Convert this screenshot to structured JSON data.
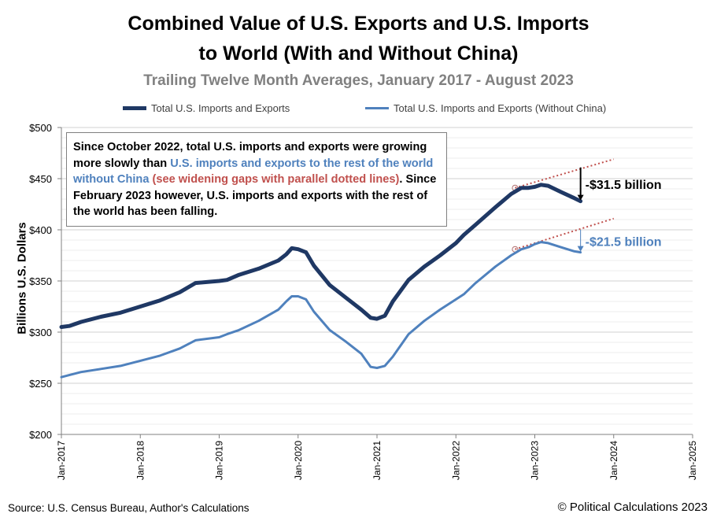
{
  "chart_data": {
    "type": "line",
    "title_lines": [
      "Combined Value of U.S. Exports and U.S. Imports",
      "to World (With and Without China)"
    ],
    "subtitle": "Trailing Twelve Month Averages, January 2017 - August 2023",
    "ylabel": "Billions U.S. Dollars",
    "ylim": [
      200,
      500
    ],
    "yticks": [
      "$200",
      "$250",
      "$300",
      "$350",
      "$400",
      "$450",
      "$500"
    ],
    "ytick_values": [
      200,
      250,
      300,
      350,
      400,
      450,
      500
    ],
    "xticks": [
      "Jan-2017",
      "Jan-2018",
      "Jan-2019",
      "Jan-2020",
      "Jan-2021",
      "Jan-2022",
      "Jan-2023",
      "Jan-2024",
      "Jan-2025"
    ],
    "xlim_year": [
      2017,
      2025
    ],
    "grid": true,
    "legend_position": "top",
    "series": [
      {
        "name": "Total U.S. Imports and Exports",
        "color": "#1f3864",
        "x": [
          2017.0,
          2017.1,
          2017.25,
          2017.5,
          2017.75,
          2018.0,
          2018.25,
          2018.5,
          2018.7,
          2019.0,
          2019.1,
          2019.25,
          2019.5,
          2019.75,
          2019.85,
          2019.92,
          2020.0,
          2020.1,
          2020.2,
          2020.4,
          2020.6,
          2020.8,
          2020.92,
          2021.0,
          2021.1,
          2021.2,
          2021.4,
          2021.6,
          2021.8,
          2022.0,
          2022.1,
          2022.25,
          2022.5,
          2022.7,
          2022.83,
          2022.92,
          2023.0,
          2023.08,
          2023.17,
          2023.33,
          2023.5,
          2023.58
        ],
        "values": [
          305,
          306,
          310,
          315,
          319,
          325,
          331,
          339,
          348,
          350,
          351,
          356,
          362,
          370,
          376,
          382,
          381,
          378,
          365,
          346,
          334,
          322,
          314,
          313,
          316,
          330,
          351,
          364,
          375,
          387,
          395,
          405,
          422,
          435,
          441,
          441,
          442,
          444,
          443,
          437,
          431,
          428
        ]
      },
      {
        "name": "Total U.S. Imports and Exports (Without China)",
        "color": "#4f81bd",
        "x": [
          2017.0,
          2017.1,
          2017.25,
          2017.5,
          2017.75,
          2018.0,
          2018.25,
          2018.5,
          2018.7,
          2019.0,
          2019.1,
          2019.25,
          2019.5,
          2019.75,
          2019.85,
          2019.92,
          2020.0,
          2020.1,
          2020.2,
          2020.4,
          2020.6,
          2020.8,
          2020.92,
          2021.0,
          2021.1,
          2021.2,
          2021.4,
          2021.6,
          2021.8,
          2022.0,
          2022.1,
          2022.25,
          2022.5,
          2022.7,
          2022.83,
          2022.92,
          2023.0,
          2023.08,
          2023.17,
          2023.33,
          2023.5,
          2023.58
        ],
        "values": [
          256,
          258,
          261,
          264,
          267,
          272,
          277,
          284,
          292,
          295,
          298,
          302,
          311,
          322,
          330,
          335,
          335,
          332,
          320,
          302,
          291,
          279,
          266,
          265,
          267,
          276,
          298,
          311,
          322,
          332,
          337,
          348,
          364,
          375,
          381,
          383,
          386,
          388,
          387,
          383,
          379,
          378
        ]
      }
    ],
    "trend_lines": [
      {
        "from": [
          2022.75,
          441
        ],
        "to": [
          2024.0,
          469
        ],
        "color": "#c0504d"
      },
      {
        "from": [
          2022.75,
          381
        ],
        "to": [
          2024.0,
          411
        ],
        "color": "#c0504d"
      }
    ],
    "annotations": [
      {
        "text": "-$31.5 billion",
        "x": 2023.58,
        "y_from": 461,
        "y_to": 428,
        "color": "#000000"
      },
      {
        "text": "-$21.5 billion",
        "x": 2023.58,
        "y_from": 400,
        "y_to": 378,
        "color": "#4f81bd"
      }
    ],
    "note": {
      "part1": "Since October 2022, total U.S. imports and exports were growing more slowly than ",
      "part2": "U.S. imports and exports to the rest of the world without China",
      "part3": " ",
      "part4": "(see widening gaps with parallel dotted lines)",
      "part5": ".  Since February 2023 however, U.S. imports and exports with the rest of the world has been falling."
    },
    "source": "Source: U.S. Census Bureau, Author's Calculations",
    "copyright": "© Political Calculations 2023"
  }
}
